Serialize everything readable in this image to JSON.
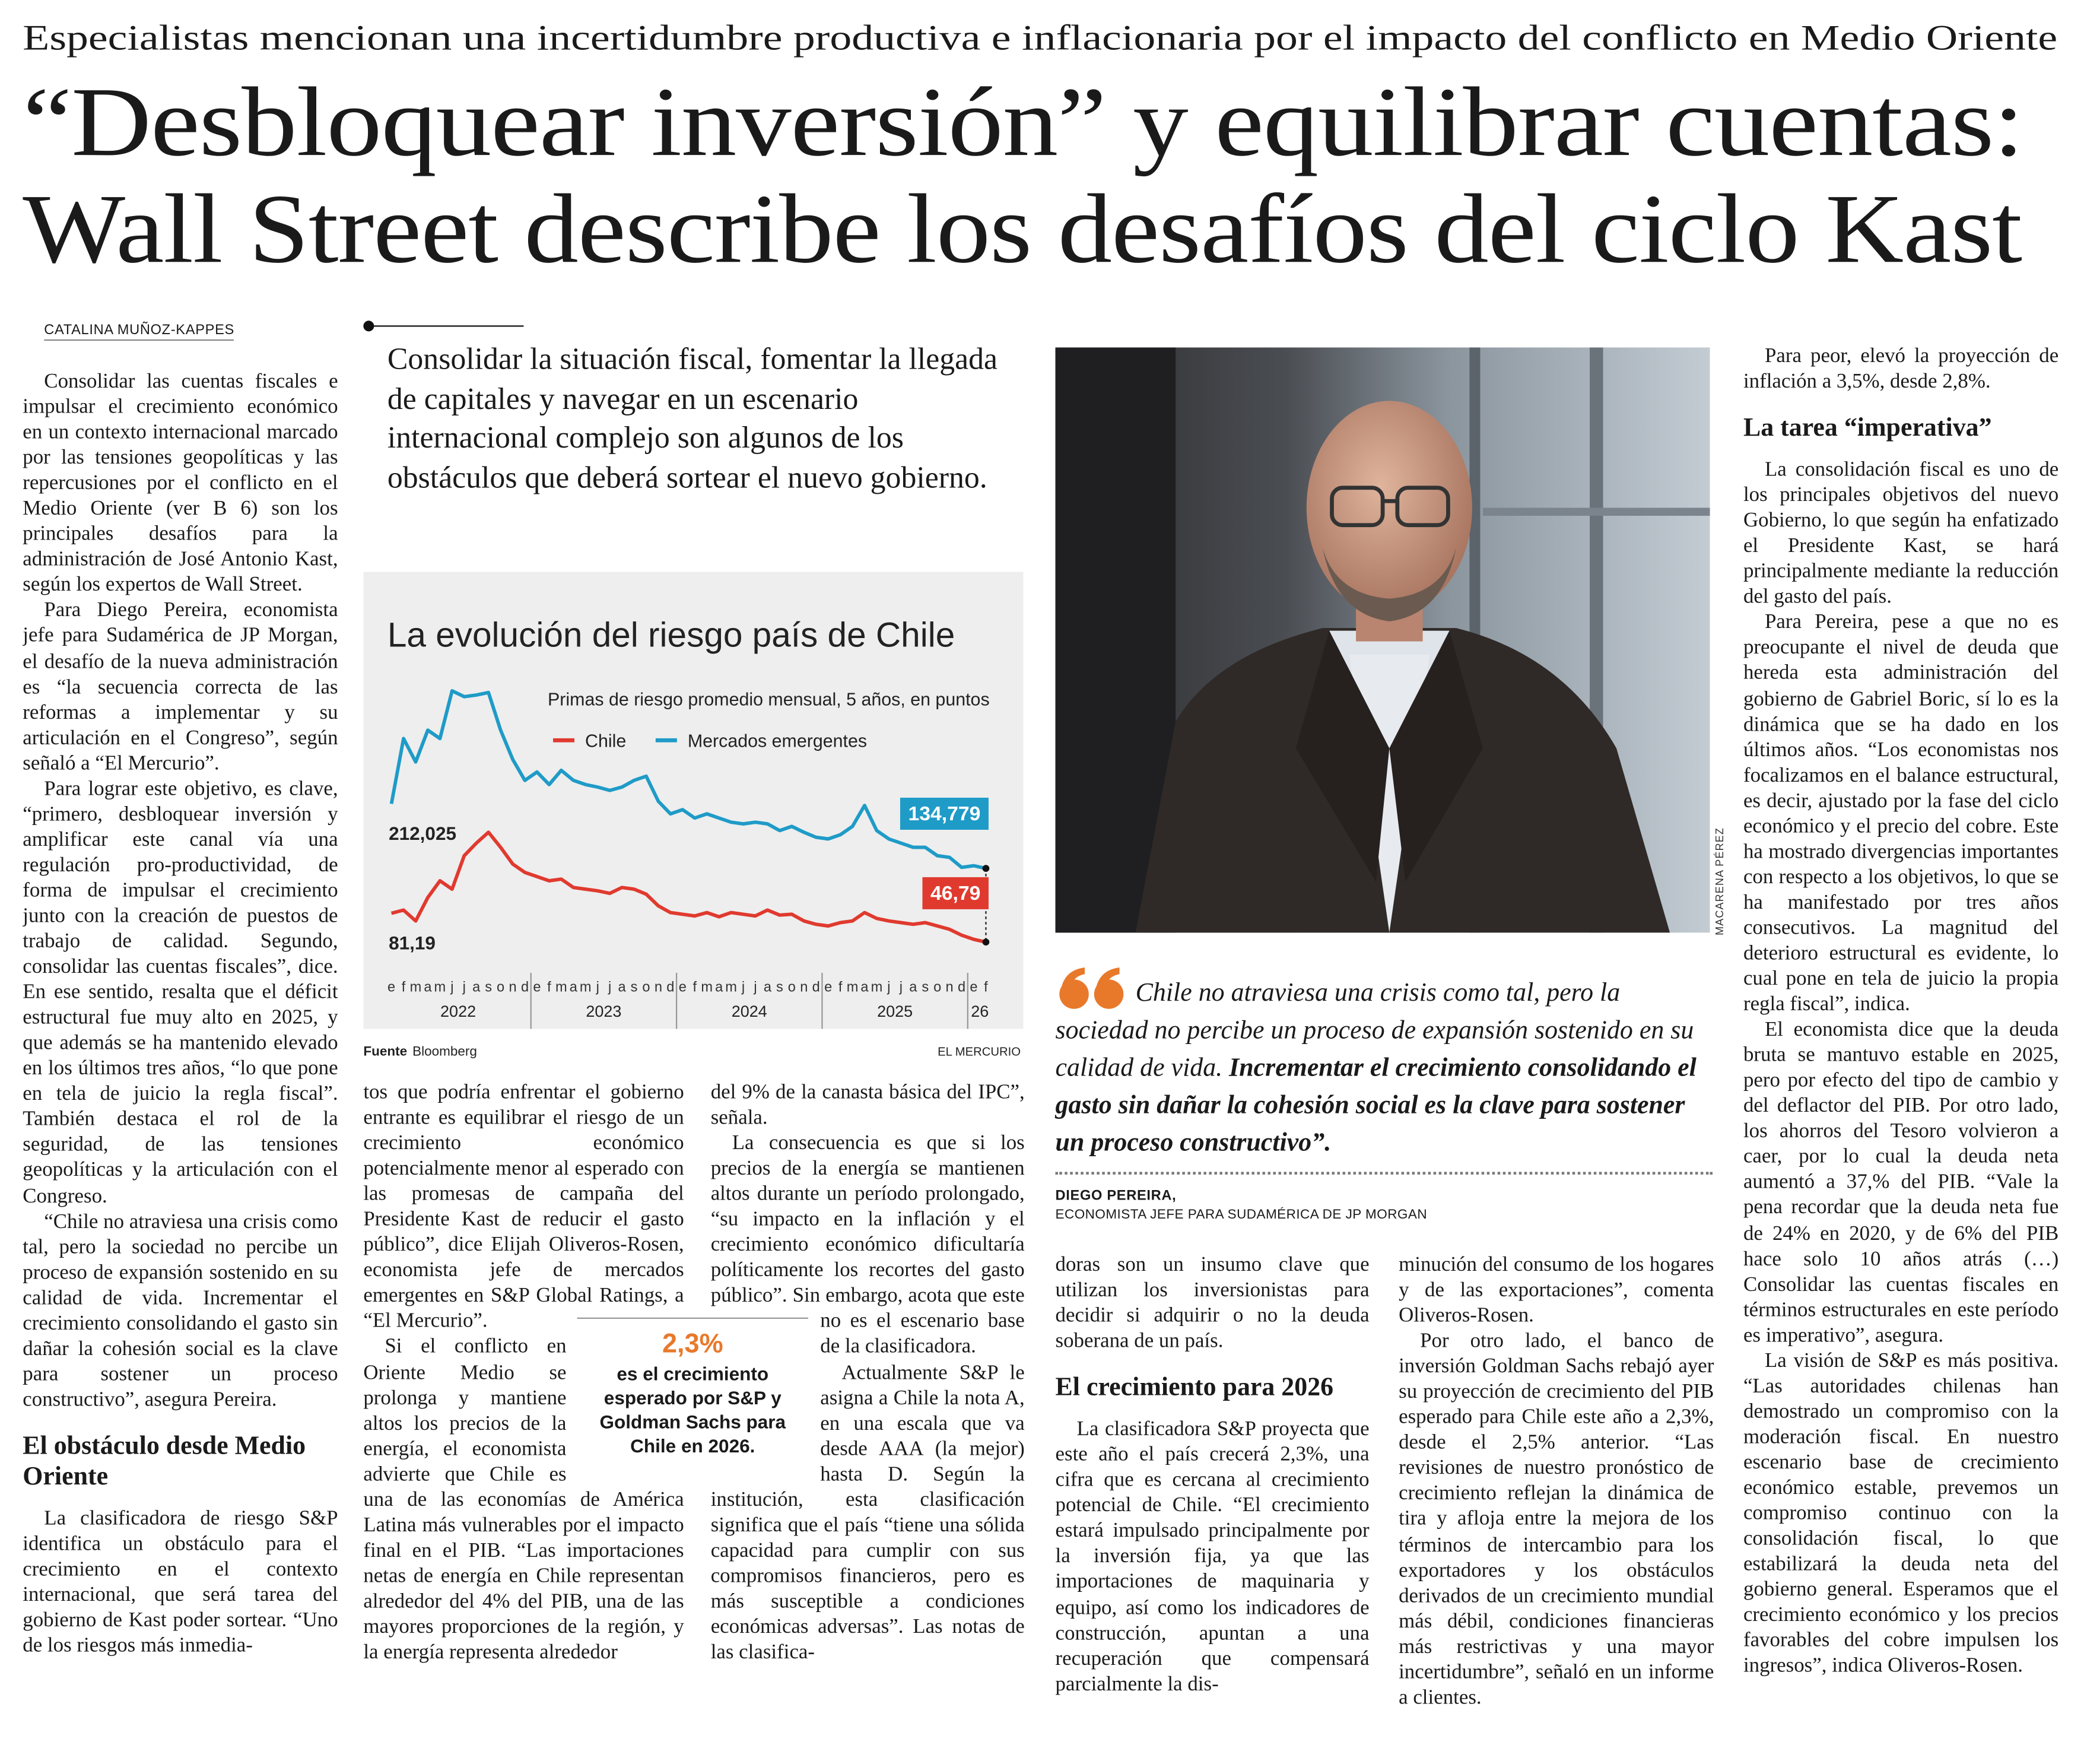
{
  "kicker": "Especialistas mencionan una incertidumbre productiva e inflacionaria por el impacto del conflicto en Medio Oriente",
  "headline": [
    "“Desbloquear inversión” y equilibrar cuentas:",
    "Wall Street describe los desafíos del ciclo Kast"
  ],
  "byline": "CATALINA MUÑOZ-KAPPES",
  "deck": "Consolidar la situación fiscal, fomentar la llegada de capitales y navegar en un escenario internacional complejo son algunos de los obstáculos que deberá sortear el nuevo gobierno.",
  "columns": [
    [
      {
        "paragraph": "Consolidar las cuentas fiscales e impulsar el crecimiento económico en un contexto internacional marcado por las tensiones geopolíticas y las repercusiones por el conflicto en el Medio Oriente (ver B 6) son los principales desafíos para la administración de José Antonio Kast, según los expertos de Wall Street."
      },
      {
        "paragraph": "Para Diego Pereira, economista jefe para Sudamérica de JP Morgan, el desafío de la nueva administración es “la secuencia correcta de las reformas a implementar y su articulación en el Congreso”, según señaló a “El Mercurio”."
      },
      {
        "paragraph": "Para lograr este objetivo, es clave, “primero, desbloquear inversión y amplificar este canal vía una regulación pro-productividad, de forma de impulsar el crecimiento junto con la creación de puestos de trabajo de calidad. Segundo, consolidar las cuentas fiscales”, dice. En ese sentido, resalta que el déficit estructural fue muy alto en 2025, y que además se ha mantenido elevado en los últimos tres años, “lo que pone en tela de juicio la regla fiscal”. También destaca el rol de la seguridad, de las tensiones geopolíticas y la articulación con el Congreso."
      },
      {
        "paragraph": "“Chile no atraviesa una crisis como tal, pero la sociedad no percibe un proceso de expansión sostenido en su calidad de vida. Incrementar el crecimiento consolidando el gasto sin dañar la cohesión social es la clave para sostener un proceso constructivo”, asegura Pereira."
      },
      {
        "heading": "El obstáculo desde Medio Oriente"
      },
      {
        "paragraph": "La clasificadora de riesgo S&P identifica un obstáculo para el crecimiento en el contexto internacional, que será tarea del gobierno de Kast poder sortear. “Uno de los riesgos más inmedia-"
      }
    ],
    [
      {
        "paragraph": "tos que podría enfrentar el gobierno entrante es equilibrar el riesgo de un crecimiento económico potencialmente menor al esperado con las promesas de campaña del Presidente Kast de reducir el gasto público”, dice Elijah Oliveros-Rosen, economista jefe de mercados emergentes en S&P Global Ratings, a “El Mercurio”."
      },
      {
        "paragraph": "Si el conflicto en Oriente Medio se prolonga y mantiene altos los precios de la energía, el economista advierte que Chile es una de las economías de América Latina más vulnerables por el impacto final en el PIB. “Las importaciones netas de energía en Chile representan alrededor del 4% del PIB, una de las mayores proporciones de la región, y la energía representa alrededor"
      }
    ],
    [
      {
        "paragraph": "del 9% de la canasta básica del IPC”, señala."
      },
      {
        "paragraph": "La consecuencia es que si los precios de la energía se mantienen altos durante un período prolongado, “su impacto en la inflación y el crecimiento económico dificultaría políticamente los recortes del gasto público”. Sin embargo, acota que este no es el escenario base de la clasificadora."
      },
      {
        "paragraph": "Actualmente S&P le asigna a Chile la nota A, en una escala que va desde AAA (la mejor) hasta D. Según la institución, esta clasificación significa que el país “tiene una sólida capacidad para cumplir con sus compromisos financieros, pero es más susceptible a condiciones económicas adversas”. Las notas de las clasifica-"
      }
    ],
    [
      {
        "paragraph": "doras son un insumo clave que utilizan los inversionistas para decidir si adquirir o no la deuda soberana de un país."
      },
      {
        "heading": "El crecimiento para 2026"
      },
      {
        "paragraph": "La clasificadora S&P proyecta que este año el país crecerá 2,3%, una cifra que es cercana al crecimiento potencial de Chile. “El crecimiento estará impulsado principalmente por la inversión fija, ya que las importaciones de maquinaria y equipo, así como los indicadores de construcción, apuntan a una recuperación que compensará parcialmente la dis-"
      }
    ],
    [
      {
        "paragraph": "minución del consumo de los hogares y de las exportaciones”, comenta Oliveros-Rosen."
      },
      {
        "paragraph": "Por otro lado, el banco de inversión Goldman Sachs rebajó ayer su proyección de crecimiento del PIB esperado para Chile este año a 2,3%, desde el 2,5% anterior. “Las revisiones de nuestro pronóstico de crecimiento reflejan la dinámica de tira y afloja entre la mejora de los términos de intercambio para los exportadores y los obstáculos derivados de un crecimiento mundial más débil, condiciones financieras más restrictivas y una mayor incertidumbre”, señaló en un informe a clientes."
      }
    ],
    [
      {
        "paragraph": "Para peor, elevó la proyección de inflación a 3,5%, desde 2,8%."
      },
      {
        "heading": "La tarea “imperativa”"
      },
      {
        "paragraph": "La consolidación fiscal es uno de los principales objetivos del nuevo Gobierno, lo que según ha enfatizado el Presidente Kast, se hará principalmente mediante la reducción del gasto del país."
      },
      {
        "paragraph": "Para Pereira, pese a que no es preocupante el nivel de deuda que hereda esta administración del gobierno de Gabriel Boric, sí lo es la dinámica que se ha dado en los últimos años. “Los economistas nos focalizamos en el balance estructural, es decir, ajustado por la fase del ciclo económico y el precio del cobre. Este ha mostrado divergencias importantes con respecto a los objetivos, lo que se ha manifestado por tres años consecutivos. La magnitud del deterioro estructural es evidente, lo cual pone en tela de juicio la propia regla fiscal”, indica."
      },
      {
        "paragraph": "El economista dice que la deuda bruta se mantuvo estable en 2025, pero por efecto del tipo de cambio y del deflactor del PIB. Por otro lado, los ahorros del Tesoro volvieron a caer, por lo cual la deuda neta aumentó a 37,% del PIB. “Vale la pena recordar que la deuda neta fue de 24% en 2020, y de 6% del PIB hace solo 10 años atrás (…) Consolidar las cuentas fiscales en términos estructurales en este período es imperativo”, asegura."
      },
      {
        "paragraph": "La visión de S&P es más positiva. “Las autoridades chilenas han demostrado un compromiso con la moderación fiscal. En nuestro escenario base de crecimiento económico estable, prevemos un compromiso continuo con la consolidación fiscal, lo que estabilizará la deuda neta del gobierno general. Esperamos que el crecimiento económico y los precios favorables del cobre impulsen los ingresos”, indica Oliveros-Rosen."
      }
    ]
  ],
  "callout": {
    "figure": "2,3%",
    "text": "es el crecimiento esperado por S&P y Goldman Sachs para Chile en 2026."
  },
  "photo_credit": "MACARENA PÉREZ",
  "quote": {
    "text": "Chile no atraviesa una crisis como tal, pero la sociedad no percibe un proceso de expansión sostenido en su calidad de vida.",
    "emphasis": "Incrementar el crecimiento consolidando el gasto sin dañar la cohesión social es la clave para sostener un proceso constructivo”.",
    "author": "DIEGO PEREIRA,",
    "role": "ECONOMISTA JEFE PARA SUDAMÉRICA DE JP MORGAN"
  },
  "chart_data": {
    "type": "line",
    "title": "La evolución del riesgo país de Chile",
    "subtitle": "Primas de riesgo promedio mensual, 5 años, en puntos",
    "categories": [
      "e",
      "f",
      "m",
      "a",
      "m",
      "j",
      "j",
      "a",
      "s",
      "o",
      "n",
      "d",
      "e",
      "f",
      "m",
      "a",
      "m",
      "j",
      "j",
      "a",
      "s",
      "o",
      "n",
      "d",
      "e",
      "f",
      "m",
      "a",
      "m",
      "j",
      "j",
      "a",
      "s",
      "o",
      "n",
      "d",
      "e",
      "f",
      "m",
      "a",
      "m",
      "j",
      "j",
      "a",
      "s",
      "o",
      "n",
      "d",
      "e",
      "f"
    ],
    "x_groups": [
      "2022",
      "2023",
      "2024",
      "2025",
      "26"
    ],
    "series": [
      {
        "name": "Chile",
        "color": "#e03a2f",
        "values": [
          81.19,
          85,
          72,
          100,
          120,
          110,
          150,
          165,
          178,
          160,
          140,
          130,
          125,
          120,
          122,
          112,
          110,
          108,
          105,
          112,
          110,
          104,
          90,
          82,
          80,
          78,
          82,
          77,
          82,
          80,
          78,
          85,
          79,
          80,
          72,
          68,
          66,
          70,
          72,
          82,
          75,
          72,
          70,
          68,
          70,
          66,
          62,
          55,
          50,
          46.79
        ],
        "value_labels": [
          "81,19",
          null,
          null,
          null,
          null,
          null,
          null,
          null,
          null,
          null,
          null,
          null,
          null,
          null,
          null,
          null,
          null,
          null,
          null,
          null,
          null,
          null,
          null,
          null,
          null,
          null,
          null,
          null,
          null,
          null,
          null,
          null,
          null,
          null,
          null,
          null,
          null,
          null,
          null,
          null,
          null,
          null,
          null,
          null,
          null,
          null,
          null,
          null,
          null,
          "46,79"
        ]
      },
      {
        "name": "Mercados emergentes",
        "color": "#1f9bc7",
        "values": [
          212.025,
          290,
          262,
          300,
          290,
          347,
          340,
          342,
          345,
          300,
          265,
          240,
          250,
          235,
          252,
          240,
          235,
          232,
          228,
          232,
          240,
          245,
          215,
          200,
          205,
          195,
          200,
          195,
          190,
          188,
          190,
          188,
          180,
          185,
          178,
          172,
          170,
          175,
          185,
          210,
          180,
          170,
          165,
          160,
          160,
          150,
          148,
          136,
          138,
          134.779
        ],
        "value_labels": [
          "212,025",
          null,
          null,
          null,
          null,
          null,
          null,
          null,
          null,
          null,
          null,
          null,
          null,
          null,
          null,
          null,
          null,
          null,
          null,
          null,
          null,
          null,
          null,
          null,
          null,
          null,
          null,
          null,
          null,
          null,
          null,
          null,
          null,
          null,
          null,
          null,
          null,
          null,
          null,
          null,
          null,
          null,
          null,
          null,
          null,
          null,
          null,
          null,
          null,
          "134,779"
        ]
      }
    ],
    "source_label": "Fuente",
    "source": "Bloomberg",
    "credit": "EL MERCURIO"
  }
}
